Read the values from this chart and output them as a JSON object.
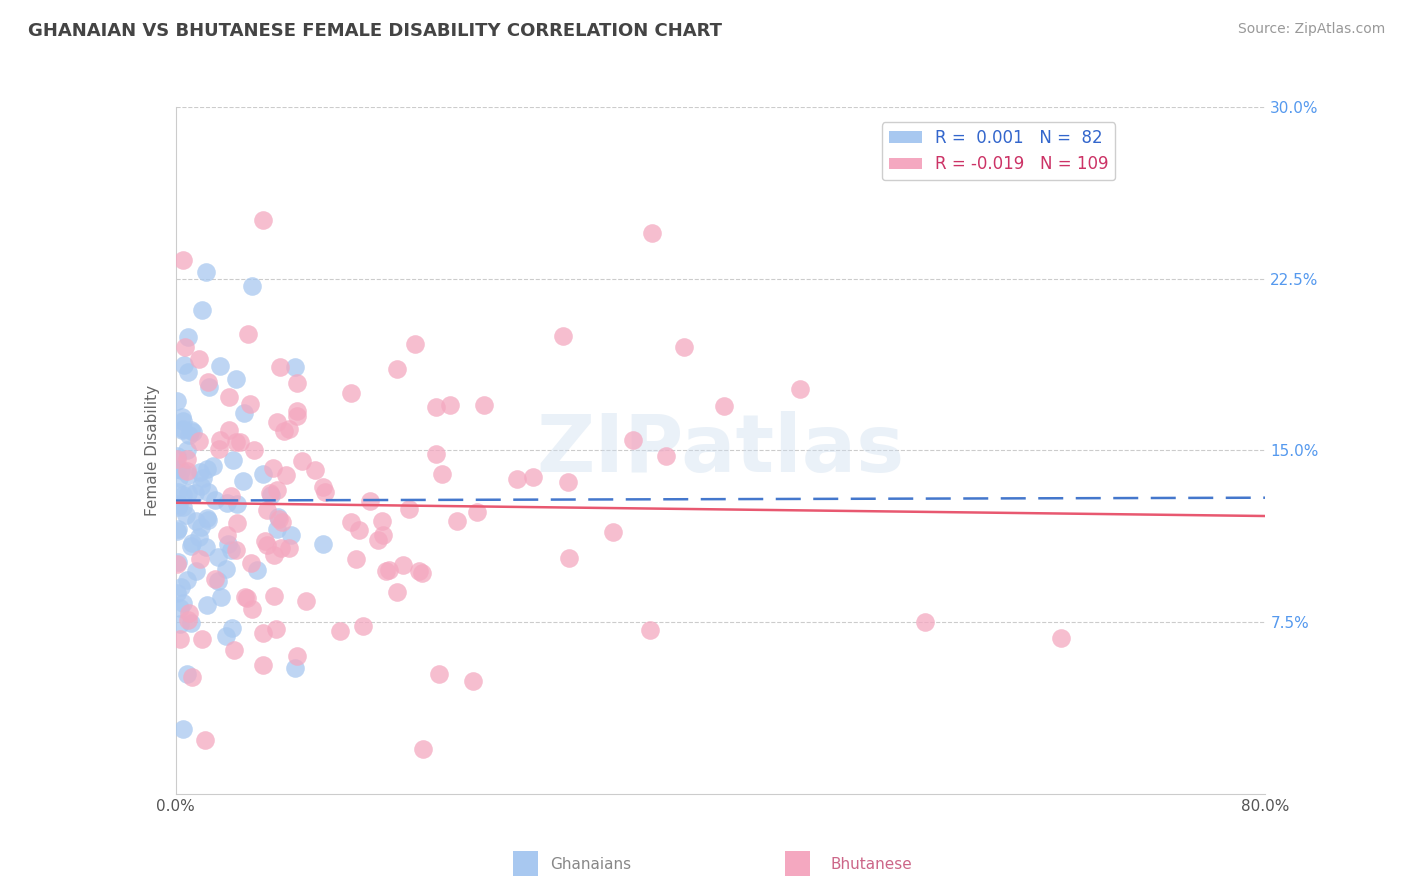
{
  "title": "GHANAIAN VS BHUTANESE FEMALE DISABILITY CORRELATION CHART",
  "source_text": "Source: ZipAtlas.com",
  "ylabel_label": "Female Disability",
  "x_min": 0.0,
  "x_max": 0.8,
  "y_min": 0.0,
  "y_max": 0.3,
  "ghanaian_R": 0.001,
  "ghanaian_N": 82,
  "bhutanese_R": -0.019,
  "bhutanese_N": 109,
  "ghanaian_color": "#a8c8f0",
  "bhutanese_color": "#f4a8c0",
  "ghanaian_line_color": "#4477cc",
  "bhutanese_line_color": "#e85870",
  "watermark": "ZIPatlas",
  "background_color": "#ffffff",
  "grid_color": "#cccccc",
  "yticks": [
    0.075,
    0.15,
    0.225,
    0.3
  ],
  "ytick_labels": [
    "7.5%",
    "15.0%",
    "22.5%",
    "30.0%"
  ],
  "right_tick_color": "#5599ee",
  "legend_text_color_1": "#3366cc",
  "legend_text_color_2": "#cc3366"
}
